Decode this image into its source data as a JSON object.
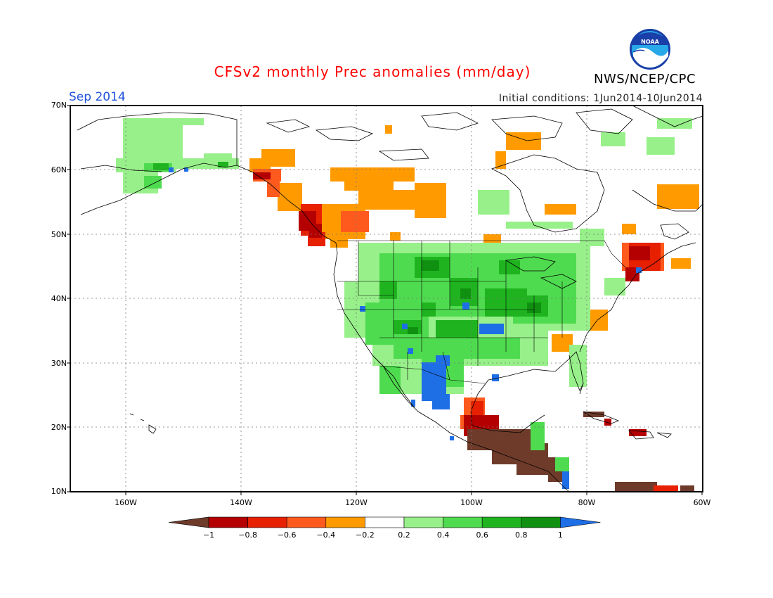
{
  "title": "CFSv2 monthly Prec anomalies (mm/day)",
  "period": "Sep 2014",
  "initial_conditions": "Initial conditions: 1Jun2014-10Jun2014",
  "agency": "NWS/NCEP/CPC",
  "logo_text": "NOAA",
  "lat_labels": [
    "70N",
    "60N",
    "50N",
    "40N",
    "30N",
    "20N",
    "10N"
  ],
  "lon_labels": [
    "160W",
    "140W",
    "120W",
    "100W",
    "80W",
    "60W"
  ],
  "colorbar": {
    "ticks": [
      "-1",
      "-0.8",
      "-0.6",
      "-0.4",
      "-0.2",
      "0.2",
      "0.4",
      "0.6",
      "0.8",
      "1"
    ],
    "colors": [
      "#6e3b2a",
      "#b40000",
      "#e62000",
      "#ff5a1e",
      "#ff9b00",
      "#ffffff",
      "#98f08a",
      "#4fdb4f",
      "#1fb41f",
      "#109010",
      "#1e6ee6"
    ]
  },
  "map_colors": {
    "brown": "#6e3b2a",
    "darkred": "#b40000",
    "red": "#e62000",
    "orangered": "#ff5a1e",
    "orange": "#ff9b00",
    "lightgreen": "#98f08a",
    "green": "#4fdb4f",
    "midgreen": "#1fb41f",
    "darkgreen": "#109010",
    "blue": "#1e6ee6"
  }
}
